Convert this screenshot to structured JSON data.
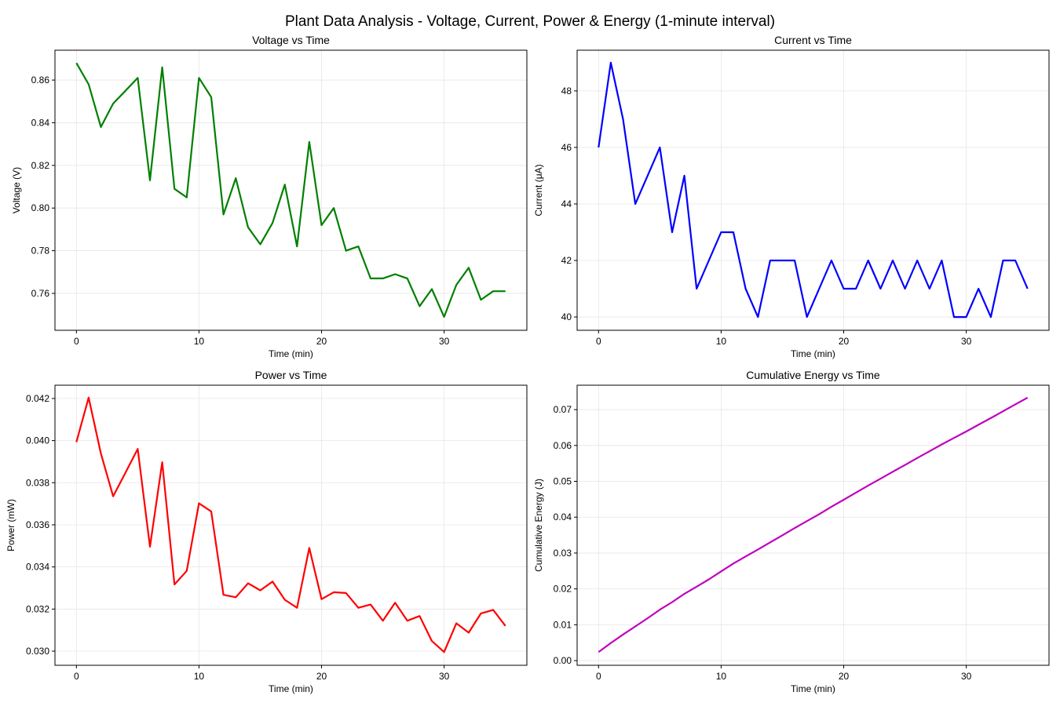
{
  "figure_title": "Plant Data Analysis - Voltage, Current, Power & Energy (1-minute interval)",
  "chart_data": [
    {
      "type": "line",
      "title": "Voltage vs Time",
      "xlabel": "Time (min)",
      "ylabel": "Voltage (V)",
      "color": "#008000",
      "grid": true,
      "xlim": [
        -1.75,
        36.75
      ],
      "ylim": [
        0.7427,
        0.874
      ],
      "xticks": [
        0,
        10,
        20,
        30
      ],
      "yticks": [
        0.76,
        0.78,
        0.8,
        0.82,
        0.84,
        0.86
      ],
      "ytick_labels": [
        "0.76",
        "0.78",
        "0.80",
        "0.82",
        "0.84",
        "0.86"
      ],
      "x": [
        0,
        1,
        2,
        3,
        4,
        5,
        6,
        7,
        8,
        9,
        10,
        11,
        12,
        13,
        14,
        15,
        16,
        17,
        18,
        19,
        20,
        21,
        22,
        23,
        24,
        25,
        26,
        27,
        28,
        29,
        30,
        31,
        32,
        33,
        34,
        35
      ],
      "y": [
        0.868,
        0.858,
        0.838,
        0.849,
        0.855,
        0.861,
        0.813,
        0.866,
        0.809,
        0.805,
        0.861,
        0.852,
        0.797,
        0.814,
        0.791,
        0.783,
        0.793,
        0.811,
        0.782,
        0.831,
        0.792,
        0.8,
        0.78,
        0.782,
        0.767,
        0.767,
        0.769,
        0.767,
        0.754,
        0.762,
        0.749,
        0.764,
        0.772,
        0.757,
        0.761,
        0.761
      ]
    },
    {
      "type": "line",
      "title": "Current vs Time",
      "xlabel": "Time (min)",
      "ylabel": "Current (μA)",
      "color": "#0000ff",
      "grid": true,
      "xlim": [
        -1.75,
        36.75
      ],
      "ylim": [
        39.53,
        49.44
      ],
      "xticks": [
        0,
        10,
        20,
        30
      ],
      "yticks": [
        40,
        42,
        44,
        46,
        48
      ],
      "ytick_labels": [
        "40",
        "42",
        "44",
        "46",
        "48"
      ],
      "x": [
        0,
        1,
        2,
        3,
        4,
        5,
        6,
        7,
        8,
        9,
        10,
        11,
        12,
        13,
        14,
        15,
        16,
        17,
        18,
        19,
        20,
        21,
        22,
        23,
        24,
        25,
        26,
        27,
        28,
        29,
        30,
        31,
        32,
        33,
        34,
        35
      ],
      "y": [
        46,
        49,
        47,
        44,
        45,
        46,
        43,
        45,
        41,
        42,
        43,
        43,
        41,
        40,
        42,
        42,
        42,
        40,
        41,
        42,
        41,
        41,
        42,
        41,
        42,
        41,
        42,
        41,
        42,
        40,
        40,
        41,
        40,
        42,
        42,
        41
      ]
    },
    {
      "type": "line",
      "title": "Power vs Time",
      "xlabel": "Time (min)",
      "ylabel": "Power (mW)",
      "color": "#ff0000",
      "grid": true,
      "xlim": [
        -1.75,
        36.75
      ],
      "ylim": [
        0.02933,
        0.04263
      ],
      "xticks": [
        0,
        10,
        20,
        30
      ],
      "yticks": [
        0.03,
        0.032,
        0.034,
        0.036,
        0.038,
        0.04,
        0.042
      ],
      "ytick_labels": [
        "0.030",
        "0.032",
        "0.034",
        "0.036",
        "0.038",
        "0.040",
        "0.042"
      ],
      "x": [
        0,
        1,
        2,
        3,
        4,
        5,
        6,
        7,
        8,
        9,
        10,
        11,
        12,
        13,
        14,
        15,
        16,
        17,
        18,
        19,
        20,
        21,
        22,
        23,
        24,
        25,
        26,
        27,
        28,
        29,
        30,
        31,
        32,
        33,
        34,
        35
      ],
      "y": [
        0.039928,
        0.042042,
        0.039386,
        0.037356,
        0.038475,
        0.039606,
        0.034959,
        0.03897,
        0.033169,
        0.03381,
        0.037023,
        0.036636,
        0.032677,
        0.03256,
        0.033222,
        0.032886,
        0.033306,
        0.03244,
        0.032062,
        0.034902,
        0.032472,
        0.0328,
        0.03276,
        0.032062,
        0.032214,
        0.031447,
        0.032298,
        0.031447,
        0.031668,
        0.03048,
        0.02996,
        0.031324,
        0.03088,
        0.031794,
        0.031962,
        0.031201
      ]
    },
    {
      "type": "line",
      "title": "Cumulative Energy vs Time",
      "xlabel": "Time (min)",
      "ylabel": "Cumulative Energy (J)",
      "color": "#bf00bf",
      "grid": true,
      "xlim": [
        -1.75,
        36.75
      ],
      "ylim": [
        -0.0013,
        0.0768
      ],
      "xticks": [
        0,
        10,
        20,
        30
      ],
      "yticks": [
        0.0,
        0.01,
        0.02,
        0.03,
        0.04,
        0.05,
        0.06,
        0.07
      ],
      "ytick_labels": [
        "0.00",
        "0.01",
        "0.02",
        "0.03",
        "0.04",
        "0.05",
        "0.06",
        "0.07"
      ],
      "x": [
        0,
        1,
        2,
        3,
        4,
        5,
        6,
        7,
        8,
        9,
        10,
        11,
        12,
        13,
        14,
        15,
        16,
        17,
        18,
        19,
        20,
        21,
        22,
        23,
        24,
        25,
        26,
        27,
        28,
        29,
        30,
        31,
        32,
        33,
        34,
        35
      ],
      "y": [
        0.0024,
        0.00492,
        0.00728,
        0.00952,
        0.01183,
        0.01421,
        0.01631,
        0.01864,
        0.02063,
        0.02266,
        0.02488,
        0.02708,
        0.02904,
        0.031,
        0.03299,
        0.03496,
        0.03696,
        0.03891,
        0.04083,
        0.04292,
        0.04487,
        0.04684,
        0.04881,
        0.05073,
        0.05266,
        0.05455,
        0.05649,
        0.05837,
        0.06028,
        0.0621,
        0.0639,
        0.06578,
        0.06763,
        0.06954,
        0.07146,
        0.07333
      ]
    }
  ]
}
